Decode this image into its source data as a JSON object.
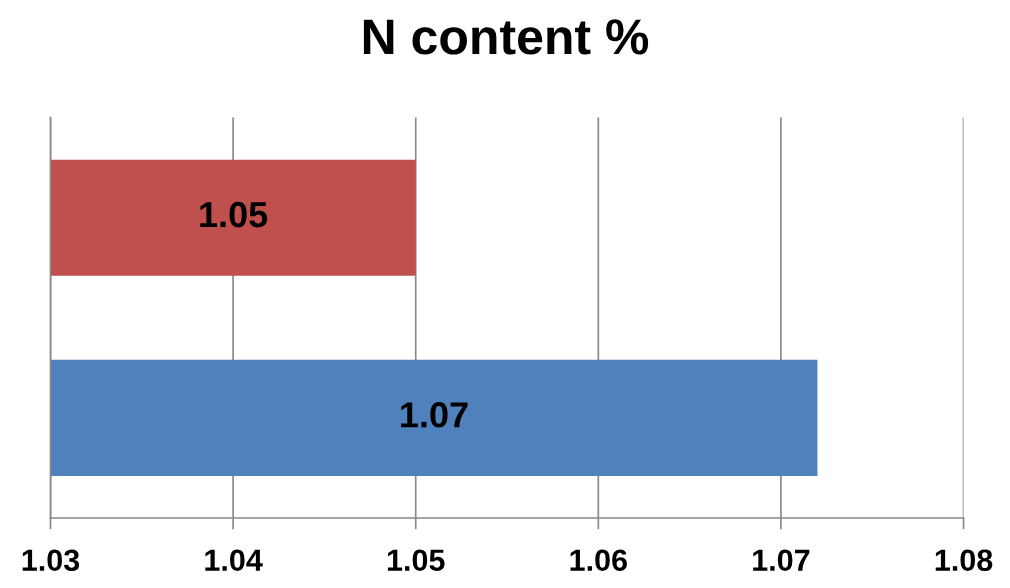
{
  "chart_data": {
    "type": "bar",
    "orientation": "horizontal",
    "title": "N content %",
    "categories": [
      null,
      null
    ],
    "values": [
      1.05,
      1.072
    ],
    "colors": [
      "#c0504d",
      "#4f81bd"
    ],
    "value_labels": [
      "1.05",
      "1.07"
    ],
    "xlim": [
      1.03,
      1.08
    ],
    "xticks": [
      {
        "value": 1.03,
        "label": "1.03"
      },
      {
        "value": 1.04,
        "label": "1.04"
      },
      {
        "value": 1.05,
        "label": "1.05"
      },
      {
        "value": 1.06,
        "label": "1.06"
      },
      {
        "value": 1.07,
        "label": "1.07"
      },
      {
        "value": 1.08,
        "label": "1.08"
      }
    ],
    "grid": "x",
    "legend": false
  }
}
